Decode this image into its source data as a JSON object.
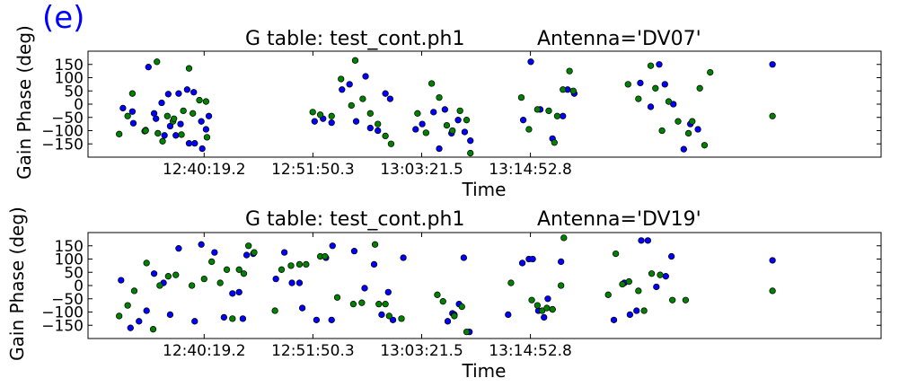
{
  "figure": {
    "panel_label": "(e)",
    "colors": {
      "series_a": "#0000ff",
      "series_b": "#008000",
      "marker_edge": "#000000",
      "label_color": "#0000ff"
    }
  },
  "chart_data": [
    {
      "type": "scatter",
      "title": "G table: test_cont.ph1",
      "subtitle": "Antenna='DV07'",
      "xlabel": "Time",
      "ylabel": "Gain Phase (deg)",
      "x_units": "minutes since 12:40:19.2",
      "xlim": [
        -12.3,
        71.7
      ],
      "xticks": [
        0,
        11.52,
        23.04,
        34.56
      ],
      "xtick_labels": [
        "12:40:19.2",
        "12:51:50.3",
        "13:03:21.5",
        "13:14:52.8"
      ],
      "ylim": [
        -200,
        200
      ],
      "yticks": [
        -150,
        -100,
        -50,
        0,
        50,
        100,
        150
      ],
      "ytick_labels": [
        "−150",
        "−100",
        "−50",
        "0",
        "50",
        "100",
        "150"
      ],
      "grid": false,
      "series": [
        {
          "color": "#0000ff",
          "points": [
            [
              -8.6,
              -15
            ],
            [
              -7.6,
              -28
            ],
            [
              -6.2,
              -98
            ],
            [
              -5.3,
              -35
            ],
            [
              -4.5,
              5
            ],
            [
              -3.6,
              -83
            ],
            [
              -2.7,
              40
            ],
            [
              -1.8,
              55
            ],
            [
              -1.1,
              45
            ],
            [
              -7.5,
              -72
            ],
            [
              -5.9,
              140
            ],
            [
              -5.1,
              -55
            ],
            [
              -4.2,
              -118
            ],
            [
              -3.8,
              38
            ],
            [
              -3.0,
              -118
            ],
            [
              -2.5,
              -75
            ],
            [
              -1.6,
              -148
            ],
            [
              -1.0,
              -148
            ],
            [
              -0.3,
              -65
            ],
            [
              0.5,
              -45
            ],
            [
              0.2,
              -95
            ],
            [
              -0.2,
              -168
            ],
            [
              11.7,
              -65
            ],
            [
              12.6,
              -55
            ],
            [
              13.5,
              -70
            ],
            [
              14.6,
              55
            ],
            [
              15.4,
              75
            ],
            [
              16.1,
              -65
            ],
            [
              17.1,
              105
            ],
            [
              17.6,
              -90
            ],
            [
              18.4,
              -100
            ],
            [
              19.2,
              40
            ],
            [
              19.7,
              20
            ],
            [
              22.4,
              -95
            ],
            [
              23.1,
              -75
            ],
            [
              24.3,
              -30
            ],
            [
              24.9,
              -168
            ],
            [
              25.5,
              -20
            ],
            [
              26.2,
              -110
            ],
            [
              26.9,
              -60
            ],
            [
              27.6,
              -105
            ],
            [
              28.2,
              -138
            ],
            [
              33.8,
              -60
            ],
            [
              34.6,
              160
            ],
            [
              35.6,
              -20
            ],
            [
              36.9,
              -130
            ],
            [
              38.0,
              -45
            ],
            [
              38.5,
              55
            ],
            [
              39.2,
              40
            ],
            [
              46.2,
              80
            ],
            [
              47.3,
              -10
            ],
            [
              48.2,
              150
            ],
            [
              48.8,
              75
            ],
            [
              49.7,
              0
            ],
            [
              50.8,
              -170
            ],
            [
              51.5,
              -75
            ],
            [
              52.3,
              -95
            ],
            [
              60.2,
              150
            ]
          ]
        },
        {
          "color": "#008000",
          "points": [
            [
              -9.0,
              -113
            ],
            [
              -8.1,
              -45
            ],
            [
              -6.3,
              -102
            ],
            [
              -5.0,
              160
            ],
            [
              -4.4,
              -140
            ],
            [
              -3.3,
              -65
            ],
            [
              -2.4,
              -115
            ],
            [
              -1.6,
              135
            ],
            [
              -7.6,
              40
            ],
            [
              -6.2,
              -100
            ],
            [
              -4.9,
              -110
            ],
            [
              -3.9,
              -45
            ],
            [
              -3.2,
              -55
            ],
            [
              -2.2,
              -25
            ],
            [
              -1.2,
              -35
            ],
            [
              -0.5,
              15
            ],
            [
              0.2,
              10
            ],
            [
              0.3,
              -125
            ],
            [
              11.5,
              -30
            ],
            [
              12.3,
              -40
            ],
            [
              13.5,
              -45
            ],
            [
              14.5,
              95
            ],
            [
              15.6,
              -5
            ],
            [
              16.0,
              165
            ],
            [
              16.8,
              20
            ],
            [
              17.6,
              -35
            ],
            [
              18.4,
              -75
            ],
            [
              19.2,
              -120
            ],
            [
              19.8,
              -150
            ],
            [
              22.6,
              -35
            ],
            [
              23.5,
              -108
            ],
            [
              24.1,
              78
            ],
            [
              24.9,
              25
            ],
            [
              25.7,
              -80
            ],
            [
              26.3,
              -100
            ],
            [
              27.1,
              -25
            ],
            [
              27.8,
              -60
            ],
            [
              28.2,
              -185
            ],
            [
              33.6,
              25
            ],
            [
              34.4,
              -95
            ],
            [
              35.3,
              -20
            ],
            [
              36.5,
              -25
            ],
            [
              37.4,
              -45
            ],
            [
              38.0,
              55
            ],
            [
              38.7,
              125
            ],
            [
              39.1,
              50
            ],
            [
              37.1,
              -145
            ],
            [
              44.9,
              75
            ],
            [
              46.0,
              20
            ],
            [
              47.3,
              145
            ],
            [
              47.8,
              60
            ],
            [
              48.5,
              -100
            ],
            [
              49.2,
              10
            ],
            [
              50.2,
              -65
            ],
            [
              51.3,
              -110
            ],
            [
              51.7,
              -65
            ],
            [
              52.5,
              60
            ],
            [
              53.0,
              -155
            ],
            [
              53.6,
              120
            ],
            [
              60.2,
              -45
            ]
          ]
        }
      ]
    },
    {
      "type": "scatter",
      "title": "G table: test_cont.ph1",
      "subtitle": "Antenna='DV19'",
      "xlabel": "Time",
      "ylabel": "Gain Phase (deg)",
      "x_units": "minutes since 12:40:19.2",
      "xlim": [
        -12.3,
        71.7
      ],
      "xticks": [
        0,
        11.52,
        23.04,
        34.56
      ],
      "xtick_labels": [
        "12:40:19.2",
        "12:51:50.3",
        "13:03:21.5",
        "13:14:52.8"
      ],
      "ylim": [
        -200,
        200
      ],
      "yticks": [
        -150,
        -100,
        -50,
        0,
        50,
        100,
        150
      ],
      "ytick_labels": [
        "−150",
        "−100",
        "−50",
        "0",
        "50",
        "100",
        "150"
      ],
      "grid": false,
      "series": [
        {
          "color": "#0000ff",
          "points": [
            [
              -8.8,
              20
            ],
            [
              -7.8,
              -160
            ],
            [
              -6.9,
              -135
            ],
            [
              -6.1,
              -95
            ],
            [
              -5.3,
              45
            ],
            [
              -4.3,
              10
            ],
            [
              -3.6,
              -110
            ],
            [
              -2.7,
              140
            ],
            [
              -1.0,
              -135
            ],
            [
              -0.3,
              155
            ],
            [
              1.1,
              125
            ],
            [
              2.1,
              -120
            ],
            [
              3.0,
              -30
            ],
            [
              3.7,
              -25
            ],
            [
              4.1,
              -125
            ],
            [
              4.5,
              115
            ],
            [
              5.2,
              120
            ],
            [
              7.6,
              25
            ],
            [
              8.5,
              125
            ],
            [
              9.3,
              10
            ],
            [
              10.1,
              10
            ],
            [
              10.4,
              -85
            ],
            [
              11.9,
              -130
            ],
            [
              12.9,
              105
            ],
            [
              13.6,
              150
            ],
            [
              13.5,
              -130
            ],
            [
              15.9,
              130
            ],
            [
              17.0,
              -10
            ],
            [
              18.0,
              80
            ],
            [
              18.8,
              -110
            ],
            [
              19.5,
              -25
            ],
            [
              20.0,
              -130
            ],
            [
              21.1,
              105
            ],
            [
              25.8,
              -135
            ],
            [
              26.3,
              -105
            ],
            [
              27.0,
              -70
            ],
            [
              26.5,
              -110
            ],
            [
              27.5,
              105
            ],
            [
              28.1,
              -175
            ],
            [
              32.2,
              -110
            ],
            [
              33.7,
              85
            ],
            [
              34.4,
              100
            ],
            [
              34.8,
              100
            ],
            [
              35.4,
              -95
            ],
            [
              36.0,
              -120
            ],
            [
              36.4,
              -50
            ],
            [
              36.9,
              -90
            ],
            [
              37.8,
              90
            ],
            [
              43.4,
              -130
            ],
            [
              44.5,
              10
            ],
            [
              45.1,
              -110
            ],
            [
              45.8,
              -95
            ],
            [
              46.3,
              170
            ],
            [
              47.0,
              170
            ],
            [
              47.9,
              -5
            ],
            [
              48.9,
              35
            ],
            [
              49.5,
              110
            ],
            [
              60.2,
              95
            ]
          ]
        },
        {
          "color": "#008000",
          "points": [
            [
              -9.0,
              -115
            ],
            [
              -8.1,
              -75
            ],
            [
              -7.4,
              -20
            ],
            [
              -6.1,
              85
            ],
            [
              -5.4,
              -165
            ],
            [
              -4.7,
              0
            ],
            [
              -3.8,
              35
            ],
            [
              -3.0,
              40
            ],
            [
              -1.3,
              0
            ],
            [
              0.0,
              25
            ],
            [
              0.8,
              90
            ],
            [
              1.7,
              10
            ],
            [
              2.4,
              60
            ],
            [
              3.0,
              -125
            ],
            [
              3.7,
              60
            ],
            [
              4.2,
              45
            ],
            [
              4.7,
              150
            ],
            [
              5.3,
              125
            ],
            [
              7.5,
              -95
            ],
            [
              8.2,
              60
            ],
            [
              9.2,
              75
            ],
            [
              10.1,
              80
            ],
            [
              10.8,
              80
            ],
            [
              12.3,
              110
            ],
            [
              12.8,
              110
            ],
            [
              14.1,
              -45
            ],
            [
              15.8,
              -70
            ],
            [
              16.7,
              -65
            ],
            [
              18.1,
              155
            ],
            [
              18.5,
              -70
            ],
            [
              19.2,
              -70
            ],
            [
              19.6,
              -115
            ],
            [
              20.9,
              -125
            ],
            [
              24.7,
              -35
            ],
            [
              25.3,
              -60
            ],
            [
              26.5,
              -115
            ],
            [
              27.3,
              -80
            ],
            [
              27.8,
              -175
            ],
            [
              32.5,
              10
            ],
            [
              34.7,
              -55
            ],
            [
              35.3,
              -75
            ],
            [
              35.8,
              -95
            ],
            [
              36.3,
              -85
            ],
            [
              36.9,
              -90
            ],
            [
              37.8,
              0
            ],
            [
              38.1,
              180
            ],
            [
              42.8,
              -35
            ],
            [
              43.6,
              120
            ],
            [
              44.3,
              5
            ],
            [
              45.0,
              15
            ],
            [
              46.0,
              -20
            ],
            [
              46.6,
              -95
            ],
            [
              47.4,
              45
            ],
            [
              48.3,
              40
            ],
            [
              49.6,
              -55
            ],
            [
              51.0,
              -55
            ],
            [
              60.2,
              -20
            ]
          ]
        }
      ]
    }
  ]
}
